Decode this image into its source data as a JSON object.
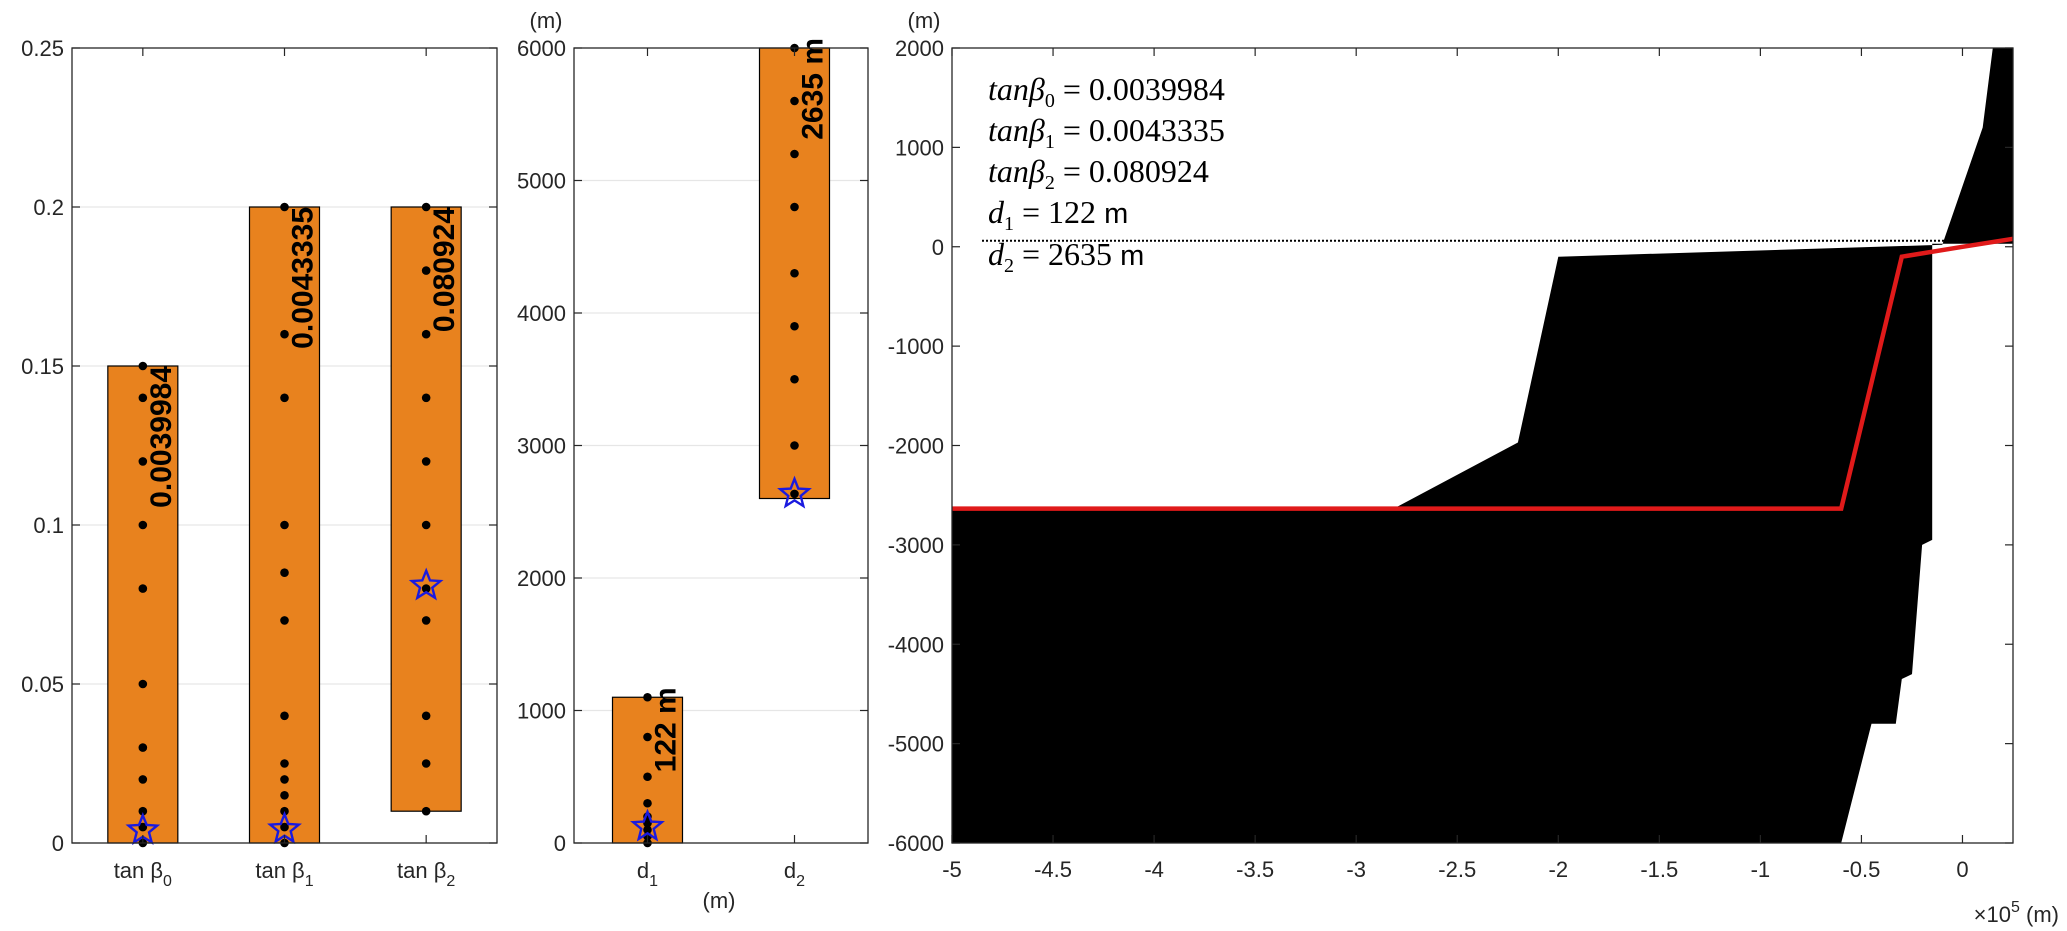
{
  "chart_data": [
    {
      "type": "range-bar",
      "ylim": [
        0,
        0.25
      ],
      "yticks": [
        "0",
        "0.05",
        "0.1",
        "0.15",
        "0.2",
        "0.25"
      ],
      "ytick_values": [
        0,
        0.05,
        0.1,
        0.15,
        0.2,
        0.25
      ],
      "grid": true,
      "categories": [
        {
          "base": "tan β",
          "sub": "0"
        },
        {
          "base": "tan β",
          "sub": "1"
        },
        {
          "base": "tan β",
          "sub": "2"
        }
      ],
      "bars": [
        {
          "low": 0.0,
          "high": 0.15,
          "label": "0.0039984",
          "star": 0.0039984,
          "points": [
            0.0,
            0.005,
            0.01,
            0.02,
            0.03,
            0.05,
            0.08,
            0.1,
            0.12,
            0.14,
            0.15
          ]
        },
        {
          "low": 0.0,
          "high": 0.2,
          "label": "0.0043335",
          "star": 0.0043335,
          "points": [
            0.0,
            0.005,
            0.01,
            0.015,
            0.02,
            0.025,
            0.04,
            0.07,
            0.085,
            0.1,
            0.14,
            0.16,
            0.2
          ]
        },
        {
          "low": 0.01,
          "high": 0.2,
          "label": "0.080924",
          "star": 0.080924,
          "points": [
            0.01,
            0.025,
            0.04,
            0.07,
            0.08,
            0.1,
            0.12,
            0.14,
            0.16,
            0.18,
            0.2
          ]
        }
      ],
      "colors": {
        "bar": "#e8821e",
        "star": "#1a1adf",
        "point": "#000000"
      }
    },
    {
      "type": "range-bar",
      "ylim": [
        0,
        6000
      ],
      "yticks": [
        "0",
        "1000",
        "2000",
        "3000",
        "4000",
        "5000",
        "6000"
      ],
      "ytick_values": [
        0,
        1000,
        2000,
        3000,
        4000,
        5000,
        6000
      ],
      "yunit": "(m)",
      "xunit": "(m)",
      "grid": true,
      "categories": [
        {
          "base": "d",
          "sub": "1"
        },
        {
          "base": "d",
          "sub": "2"
        }
      ],
      "bars": [
        {
          "low": 0,
          "high": 1100,
          "label": "122 m",
          "star": 122,
          "points": [
            0,
            50,
            100,
            150,
            200,
            300,
            500,
            800,
            1100
          ]
        },
        {
          "low": 2600,
          "high": 6000,
          "label": "2635 m",
          "star": 2635,
          "points": [
            2635,
            3000,
            3500,
            3900,
            4300,
            4800,
            5200,
            5600,
            6000
          ]
        }
      ],
      "colors": {
        "bar": "#e8821e",
        "star": "#1a1adf",
        "point": "#000000"
      }
    },
    {
      "type": "area",
      "xlim": [
        -5,
        0.25
      ],
      "ylim": [
        -6000,
        2000
      ],
      "xticks": [
        "-5",
        "-4.5",
        "-4",
        "-3.5",
        "-3",
        "-2.5",
        "-2",
        "-1.5",
        "-1",
        "-0.5",
        "0"
      ],
      "xtick_values": [
        -5,
        -4.5,
        -4,
        -3.5,
        -3,
        -2.5,
        -2,
        -1.5,
        -1,
        -0.5,
        0
      ],
      "yticks": [
        "-6000",
        "-5000",
        "-4000",
        "-3000",
        "-2000",
        "-1000",
        "0",
        "1000",
        "2000"
      ],
      "ytick_values": [
        -6000,
        -5000,
        -4000,
        -3000,
        -2000,
        -1000,
        0,
        1000,
        2000
      ],
      "yunit": "(m)",
      "xexp_base": "×10",
      "xexp_power": "5",
      "xunit": "(m)",
      "terrain": [
        [
          -5,
          -2620
        ],
        [
          -2.8,
          -2620
        ],
        [
          -2.2,
          -1970
        ],
        [
          -2.0,
          -100
        ],
        [
          -0.1,
          20
        ],
        [
          0.1,
          1200
        ],
        [
          0.15,
          2000
        ],
        [
          0.25,
          2000
        ],
        [
          0.25,
          30
        ],
        [
          -0.15,
          30
        ],
        [
          -0.15,
          -2950
        ],
        [
          -0.2,
          -3000
        ],
        [
          -0.25,
          -4300
        ],
        [
          -0.3,
          -4350
        ],
        [
          -0.33,
          -4800
        ],
        [
          -0.45,
          -4800
        ],
        [
          -0.6,
          -6000
        ],
        [
          -5,
          -6000
        ]
      ],
      "sea_level": 0,
      "profile": [
        [
          -5,
          -2635
        ],
        [
          -0.6,
          -2635
        ],
        [
          -0.3,
          -100
        ],
        [
          0,
          0
        ],
        [
          0.25,
          80
        ]
      ],
      "annotations": [
        {
          "lhs_base": "tanβ",
          "lhs_sub": "0",
          "rhs": " = 0.0039984",
          "unit": ""
        },
        {
          "lhs_base": "tanβ",
          "lhs_sub": "1",
          "rhs": " = 0.0043335",
          "unit": ""
        },
        {
          "lhs_base": "tanβ",
          "lhs_sub": "2",
          "rhs": " = 0.080924",
          "unit": ""
        },
        {
          "lhs_base": "d",
          "lhs_sub": "1",
          "rhs": " = 122",
          "unit": " m"
        },
        {
          "lhs_base": "d",
          "lhs_sub": "2",
          "rhs": " = 2635",
          "unit": " m"
        }
      ],
      "colors": {
        "terrain": "#000000",
        "profile": "#e01a1a"
      }
    }
  ]
}
